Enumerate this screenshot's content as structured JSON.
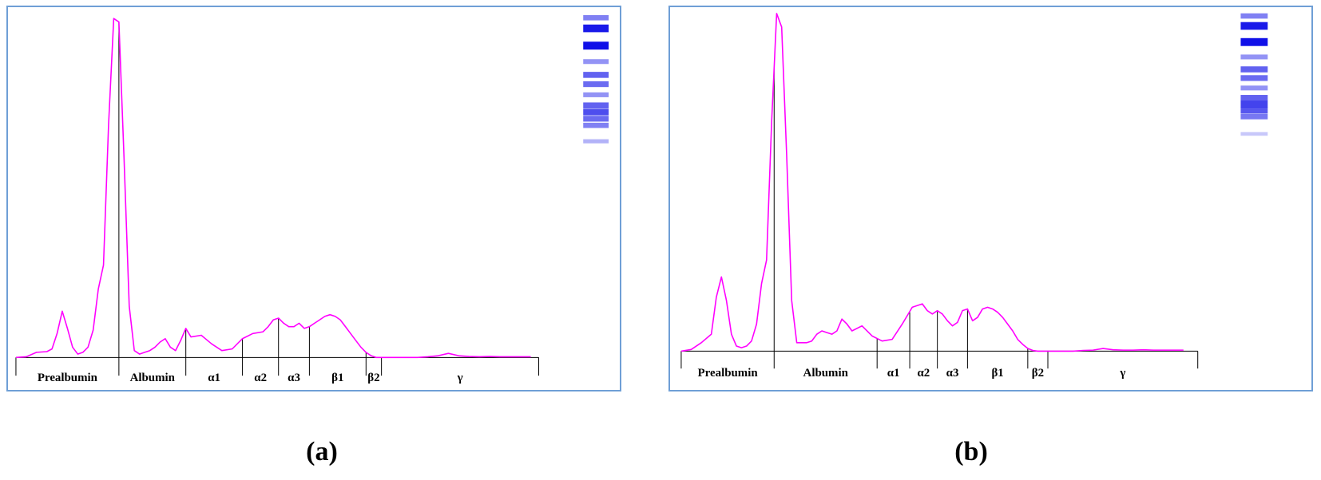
{
  "chart_data": [
    {
      "id": "a",
      "type": "line",
      "caption": "(a)",
      "title": "",
      "xlabel": "",
      "ylabel": "",
      "colors": {
        "curve": "#ff00ff",
        "panel_border": "#6f9fd6",
        "axis": "#000000",
        "band": "#1010e8"
      },
      "curve": {
        "x": [
          0,
          2,
          4,
          6,
          7,
          8,
          9,
          10,
          11,
          12,
          13,
          14,
          15,
          16,
          17,
          18,
          19,
          20,
          21,
          22,
          23,
          24,
          25,
          26,
          27,
          28,
          29,
          30,
          31,
          32,
          33,
          34,
          36,
          38,
          40,
          42,
          44,
          46,
          48,
          49,
          50,
          51,
          52,
          53,
          54,
          55,
          56,
          57,
          58,
          59,
          60,
          61,
          62,
          63,
          64,
          65,
          66,
          67,
          68,
          69,
          70,
          71,
          72,
          73,
          74,
          75,
          76,
          78,
          80,
          82,
          84,
          86,
          88,
          90,
          92,
          94,
          96,
          98,
          100
        ],
        "y": [
          0.0,
          0.2,
          1.5,
          1.7,
          2.5,
          7.0,
          13.5,
          8.5,
          3.0,
          1.0,
          1.5,
          3.0,
          8.0,
          20.0,
          27.0,
          68.0,
          99.0,
          98.0,
          58.0,
          15.0,
          2.0,
          1.0,
          1.5,
          2.0,
          3.0,
          4.5,
          5.5,
          3.0,
          2.0,
          5.0,
          8.5,
          6.0,
          6.5,
          4.0,
          2.0,
          2.5,
          5.5,
          7.0,
          7.5,
          9.0,
          11.0,
          11.5,
          10.0,
          9.0,
          9.0,
          10.0,
          8.5,
          9.0,
          10.0,
          11.0,
          12.0,
          12.5,
          12.0,
          11.0,
          9.0,
          7.0,
          5.0,
          3.0,
          1.5,
          0.5,
          0.0,
          0.0,
          0.0,
          0.0,
          0.0,
          0.0,
          0.0,
          0.0,
          0.2,
          0.5,
          1.2,
          0.5,
          0.3,
          0.2,
          0.3,
          0.2,
          0.2,
          0.2,
          0.2
        ],
        "ylim": [
          0,
          100
        ]
      },
      "fractions": [
        {
          "label": "Prealbumin",
          "from": 0,
          "to": 20.0
        },
        {
          "label": "Albumin",
          "from": 20.0,
          "to": 33.0
        },
        {
          "label": "α1",
          "from": 33.0,
          "to": 44.0
        },
        {
          "label": "α2",
          "from": 44.0,
          "to": 51.0
        },
        {
          "label": "α3",
          "from": 51.0,
          "to": 57.0
        },
        {
          "label": "β1",
          "from": 57.0,
          "to": 68.0
        },
        {
          "label": "β2",
          "from": 68.0,
          "to": 71.0
        },
        {
          "label": "γ",
          "from": 71.0,
          "to": 100.0
        }
      ],
      "gel_bands": [
        {
          "pos": 0.02,
          "intensity": 0.45
        },
        {
          "pos": 0.1,
          "intensity": 0.95
        },
        {
          "pos": 0.23,
          "intensity": 1.0
        },
        {
          "pos": 0.35,
          "intensity": 0.35
        },
        {
          "pos": 0.45,
          "intensity": 0.6
        },
        {
          "pos": 0.52,
          "intensity": 0.55
        },
        {
          "pos": 0.6,
          "intensity": 0.35
        },
        {
          "pos": 0.68,
          "intensity": 0.6
        },
        {
          "pos": 0.73,
          "intensity": 0.7
        },
        {
          "pos": 0.78,
          "intensity": 0.55
        },
        {
          "pos": 0.83,
          "intensity": 0.45
        },
        {
          "pos": 0.95,
          "intensity": 0.2
        }
      ]
    },
    {
      "id": "b",
      "type": "line",
      "caption": "(b)",
      "title": "",
      "xlabel": "",
      "ylabel": "",
      "colors": {
        "curve": "#ff00ff",
        "panel_border": "#6f9fd6",
        "axis": "#000000",
        "band": "#1010e8"
      },
      "curve": {
        "x": [
          0,
          2,
          4,
          6,
          7,
          8,
          9,
          10,
          11,
          12,
          13,
          14,
          15,
          16,
          17,
          18,
          19,
          20,
          21,
          22,
          23,
          24,
          25,
          26,
          27,
          28,
          29,
          30,
          31,
          32,
          33,
          34,
          36,
          38,
          40,
          42,
          44,
          46,
          48,
          49,
          50,
          51,
          52,
          53,
          54,
          55,
          56,
          57,
          58,
          59,
          60,
          61,
          62,
          63,
          64,
          65,
          66,
          67,
          68,
          69,
          70,
          71,
          72,
          73,
          74,
          75,
          76,
          78,
          80,
          82,
          84,
          86,
          88,
          90,
          92,
          94,
          96,
          98,
          100
        ],
        "y": [
          0.0,
          0.5,
          2.5,
          5.0,
          16.0,
          22.0,
          15.0,
          5.0,
          1.5,
          1.0,
          1.5,
          3.0,
          8.0,
          20.0,
          27.0,
          68.0,
          100.0,
          96.0,
          58.0,
          15.0,
          2.5,
          2.5,
          2.5,
          3.0,
          5.0,
          6.0,
          5.5,
          5.0,
          6.0,
          9.5,
          8.0,
          6.0,
          7.5,
          4.5,
          3.0,
          3.5,
          8.0,
          13.0,
          14.0,
          12.0,
          11.0,
          12.0,
          11.0,
          9.0,
          7.5,
          8.5,
          12.0,
          12.5,
          9.0,
          10.0,
          12.5,
          13.0,
          12.5,
          11.5,
          10.0,
          8.0,
          6.0,
          3.5,
          2.0,
          0.8,
          0.2,
          0.0,
          0.0,
          0.0,
          0.0,
          0.0,
          0.0,
          0.0,
          0.2,
          0.3,
          0.8,
          0.4,
          0.3,
          0.3,
          0.4,
          0.3,
          0.3,
          0.3,
          0.3
        ],
        "ylim": [
          0,
          100
        ]
      },
      "fractions": [
        {
          "label": "Prealbumin",
          "from": 0,
          "to": 18.5
        },
        {
          "label": "Albumin",
          "from": 18.5,
          "to": 39.0
        },
        {
          "label": "α1",
          "from": 39.0,
          "to": 45.5
        },
        {
          "label": "α2",
          "from": 45.5,
          "to": 51.0
        },
        {
          "label": "α3",
          "from": 51.0,
          "to": 57.0
        },
        {
          "label": "β1",
          "from": 57.0,
          "to": 69.0
        },
        {
          "label": "β2",
          "from": 69.0,
          "to": 73.0
        },
        {
          "label": "γ",
          "from": 73.0,
          "to": 100.0
        }
      ],
      "gel_bands": [
        {
          "pos": 0.02,
          "intensity": 0.45
        },
        {
          "pos": 0.1,
          "intensity": 0.95
        },
        {
          "pos": 0.23,
          "intensity": 1.0
        },
        {
          "pos": 0.35,
          "intensity": 0.35
        },
        {
          "pos": 0.45,
          "intensity": 0.6
        },
        {
          "pos": 0.52,
          "intensity": 0.55
        },
        {
          "pos": 0.6,
          "intensity": 0.35
        },
        {
          "pos": 0.68,
          "intensity": 0.6
        },
        {
          "pos": 0.73,
          "intensity": 0.75
        },
        {
          "pos": 0.78,
          "intensity": 0.65
        },
        {
          "pos": 0.83,
          "intensity": 0.5
        },
        {
          "pos": 0.97,
          "intensity": 0.1
        }
      ]
    }
  ]
}
